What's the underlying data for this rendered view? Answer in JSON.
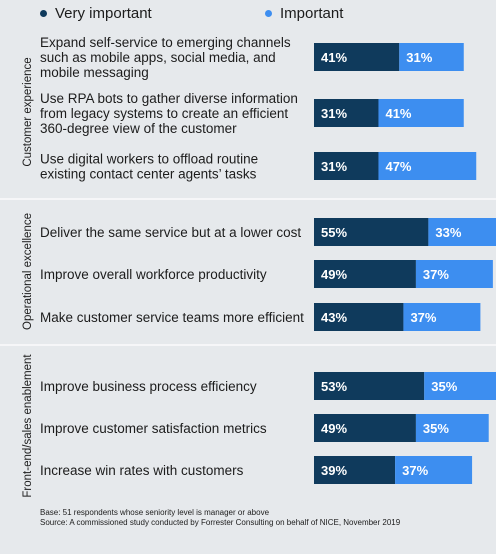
{
  "legend": [
    {
      "label": "Very important",
      "color": "#0f3a5c"
    },
    {
      "label": "Important",
      "color": "#3d8ef0"
    }
  ],
  "chart_data": {
    "type": "bar",
    "orientation": "horizontal",
    "stacked": true,
    "xlim": [
      0,
      100
    ],
    "series": [
      {
        "name": "Very important",
        "color": "#0f3a5c",
        "values": [
          41,
          31,
          31,
          55,
          49,
          43,
          53,
          49,
          39
        ]
      },
      {
        "name": "Important",
        "color": "#3d8ef0",
        "values": [
          31,
          41,
          47,
          33,
          37,
          37,
          35,
          35,
          37
        ]
      }
    ],
    "groups": [
      {
        "name": "Customer experience",
        "categories": [
          [
            "Expand self-service to emerging channels",
            "such as mobile apps, social media, and",
            "mobile messaging"
          ],
          [
            "Use RPA bots to gather diverse information",
            "from legacy systems to create an efficient",
            "360-degree view of the customer"
          ],
          [
            "Use digital workers to offload routine",
            "existing contact center agents’ tasks"
          ]
        ]
      },
      {
        "name": "Operational excellence",
        "categories": [
          [
            "Deliver the same service but at a lower cost"
          ],
          [
            "Improve overall workforce productivity"
          ],
          [
            "Make customer service teams more efficient"
          ]
        ]
      },
      {
        "name": "Front-end/sales enablement",
        "categories": [
          [
            "Improve business process efficiency"
          ],
          [
            "Improve customer satisfaction metrics"
          ],
          [
            "Increase win rates with customers"
          ]
        ]
      }
    ]
  },
  "footnotes": {
    "base": "Base: 51 respondents whose seniority level is manager or above",
    "source": "Source: A commissioned study conducted by Forrester Consulting on behalf of NICE, November 2019"
  }
}
